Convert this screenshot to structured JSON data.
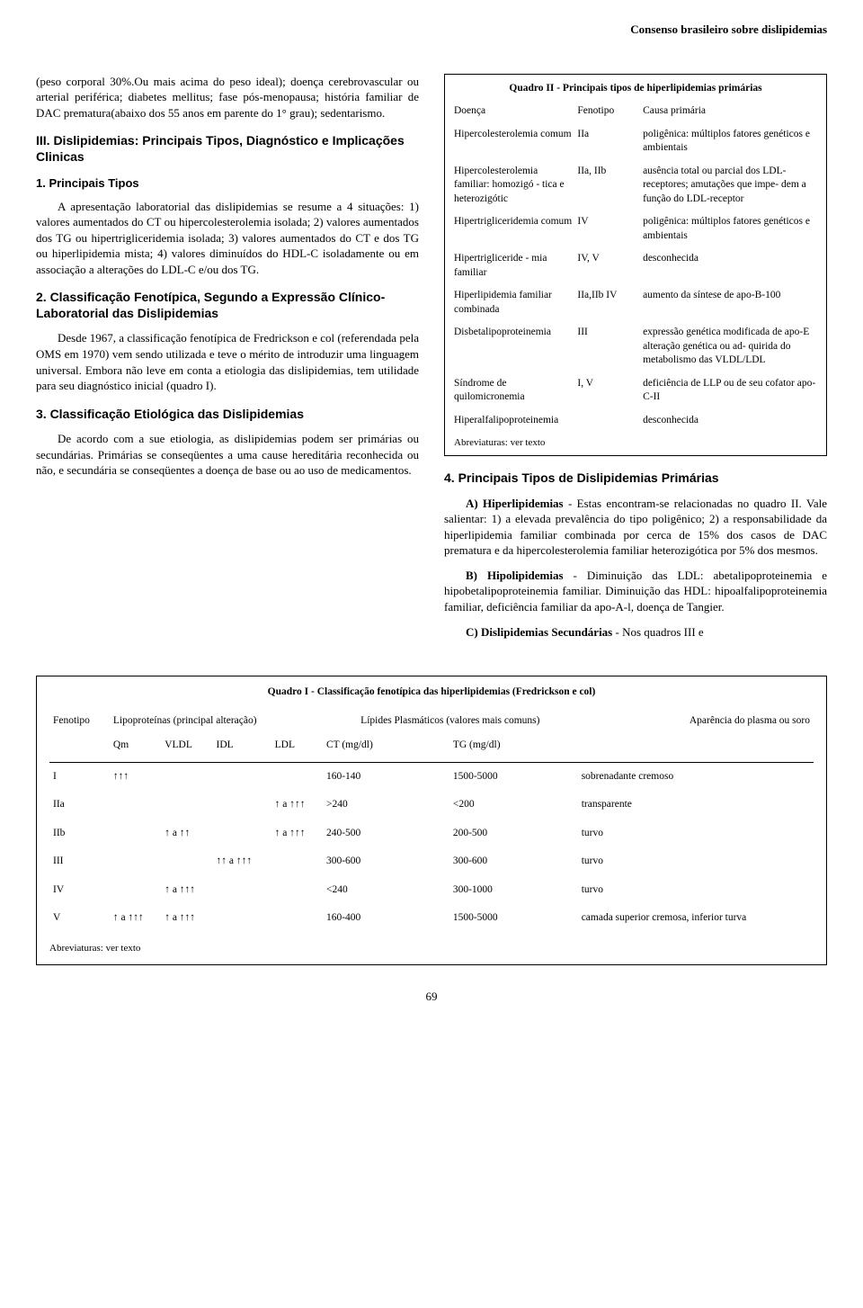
{
  "runningHead": "Consenso brasileiro sobre dislipidemias",
  "left": {
    "p1": "(peso corporal 30%.Ou mais acima do peso ideal); doença cerebrovascular ou arterial periférica; diabetes mellitus; fase pós-menopausa; história familiar de DAC prematura(abaixo dos 55 anos em parente do 1° grau); sedentarismo.",
    "h1": "III. Dislipidemias: Principais Tipos, Diagnóstico e Implicações Clinicas",
    "sub1": "1. Principais Tipos",
    "p2": "A apresentação laboratorial das dislipidemias se resume a 4 situações: 1) valores aumentados do CT ou hipercolesterolemia isolada; 2) valores aumentados dos TG ou hipertrigliceridemia isolada; 3) valores aumentados do CT e dos TG ou hiperlipidemia mista; 4) valores diminuídos do HDL-C isoladamente ou em associação a alterações do LDL-C e/ou dos TG.",
    "sub2": "2. Classificação Fenotípica, Segundo a Expressão Clínico-Laboratorial das Dislipidemias",
    "p3": "Desde 1967, a classificação fenotípica de Fredrickson e col (referendada pela OMS em 1970) vem sendo utilizada e teve o mérito de introduzir uma linguagem universal. Embora não leve em conta a etiologia das dislipidemias, tem utilidade para seu diagnóstico inicial (quadro I).",
    "sub3": "3. Classificação Etiológica das Dislipidemias",
    "p4": "De acordo com a sue etiologia, as dislipidemias podem ser primárias ou secundárias. Primárias se conseqüentes a uma cause hereditária reconhecida ou não, e secundária se conseqüentes a doença de base ou ao uso de medicamentos."
  },
  "quadro2": {
    "title": "Quadro II - Principais tipos de hiperlipidemias primárias",
    "headers": {
      "c1": "Doença",
      "c2": "Fenotipo",
      "c3": "Causa primária"
    },
    "rows": [
      {
        "c1": "Hipercolesterolemia comum",
        "c2": "IIa",
        "c3": "poligênica: múltiplos fatores genéticos e ambientais"
      },
      {
        "c1": "Hipercolesterolemia familiar: homozigó - tica e heterozigótic",
        "c2": "IIa, IIb",
        "c3": "ausência total ou parcial dos LDL-receptores; amutações que impe- dem a função do LDL-receptor"
      },
      {
        "c1": "Hipertrigliceridemia comum",
        "c2": "IV",
        "c3": "poligênica: múltiplos fatores genéticos e ambientais"
      },
      {
        "c1": "Hipertrigliceride - mia familiar",
        "c2": "IV, V",
        "c3": "desconhecida"
      },
      {
        "c1": "Hiperlipidemia familiar combinada",
        "c2": "IIa,IIb IV",
        "c3": "aumento da síntese de apo-B-100"
      },
      {
        "c1": "Disbetalipoproteinemia",
        "c2": "III",
        "c3": "expressão genética modificada de apo-E alteração genética ou ad- quirida do metabolismo das VLDL/LDL"
      },
      {
        "c1": "Síndrome de quilomicronemia",
        "c2": "I, V",
        "c3": "deficiência de LLP ou de seu cofator apo-C-II"
      },
      {
        "c1": "Hiperalfalipoproteinemia",
        "c2": "",
        "c3": "desconhecida"
      }
    ],
    "note": "Abreviaturas: ver texto"
  },
  "right": {
    "h4": "4. Principais Tipos de Dislipidemias Primárias",
    "pA_label": "A) Hiperlipidemias",
    "pA_rest": " - Estas encontram-se relacionadas no quadro II. Vale salientar: 1) a elevada prevalência do tipo poligênico; 2) a responsabilidade da hiperlipidemia familiar combinada por cerca de 15% dos casos de DAC prematura e da hipercolesterolemia familiar heterozigótica por 5% dos mesmos.",
    "pB_label": "B) Hipolipidemias",
    "pB_rest": " - Diminuição das LDL: abetalipoproteinemia e hipobetalipoproteinemia familiar. Diminuição das HDL: hipoalfalipoproteinemia familiar, deficiência familiar da apo-A-l, doença de Tangier.",
    "pC_label": "C) Dislipidemias Secundárias",
    "pC_rest": " - Nos quadros III e"
  },
  "quadro1": {
    "title": "Quadro I - Classificação fenotípica das hiperlipidemias (Fredrickson e col)",
    "groupHeaders": {
      "fenotipo": "Fenotipo",
      "lipo": "Lipoproteínas (principal alteração)",
      "lip": "Lípides Plasmáticos (valores mais comuns)",
      "apar": "Aparência do plasma ou soro"
    },
    "subHeaders": {
      "qm": "Qm",
      "vldl": "VLDL",
      "idl": "IDL",
      "ldl": "LDL",
      "ct": "CT (mg/dl)",
      "tg": "TG (mg/dl)"
    },
    "rows": [
      {
        "fen": "I",
        "qm": "↑↑↑",
        "vldl": "",
        "idl": "",
        "ldl": "",
        "ct": "160-140",
        "tg": "1500-5000",
        "ap": "sobrenadante cremoso"
      },
      {
        "fen": "IIa",
        "qm": "",
        "vldl": "",
        "idl": "",
        "ldl": "↑ a ↑↑↑",
        "ct": ">240",
        "tg": "<200",
        "ap": "transparente"
      },
      {
        "fen": "IIb",
        "qm": "",
        "vldl": "↑ a ↑↑",
        "idl": "",
        "ldl": "↑ a ↑↑↑",
        "ct": "240-500",
        "tg": "200-500",
        "ap": "turvo"
      },
      {
        "fen": "III",
        "qm": "",
        "vldl": "",
        "idl": "↑↑ a ↑↑↑",
        "ldl": "",
        "ct": "300-600",
        "tg": "300-600",
        "ap": "turvo"
      },
      {
        "fen": "IV",
        "qm": "",
        "vldl": "↑ a ↑↑↑",
        "idl": "",
        "ldl": "",
        "ct": "<240",
        "tg": "300-1000",
        "ap": "turvo"
      },
      {
        "fen": "V",
        "qm": "↑ a ↑↑↑",
        "vldl": "↑ a ↑↑↑",
        "idl": "",
        "ldl": "",
        "ct": "160-400",
        "tg": "1500-5000",
        "ap": "camada superior cremosa, inferior turva"
      }
    ],
    "note": "Abreviaturas: ver texto"
  },
  "pageNumber": "69"
}
